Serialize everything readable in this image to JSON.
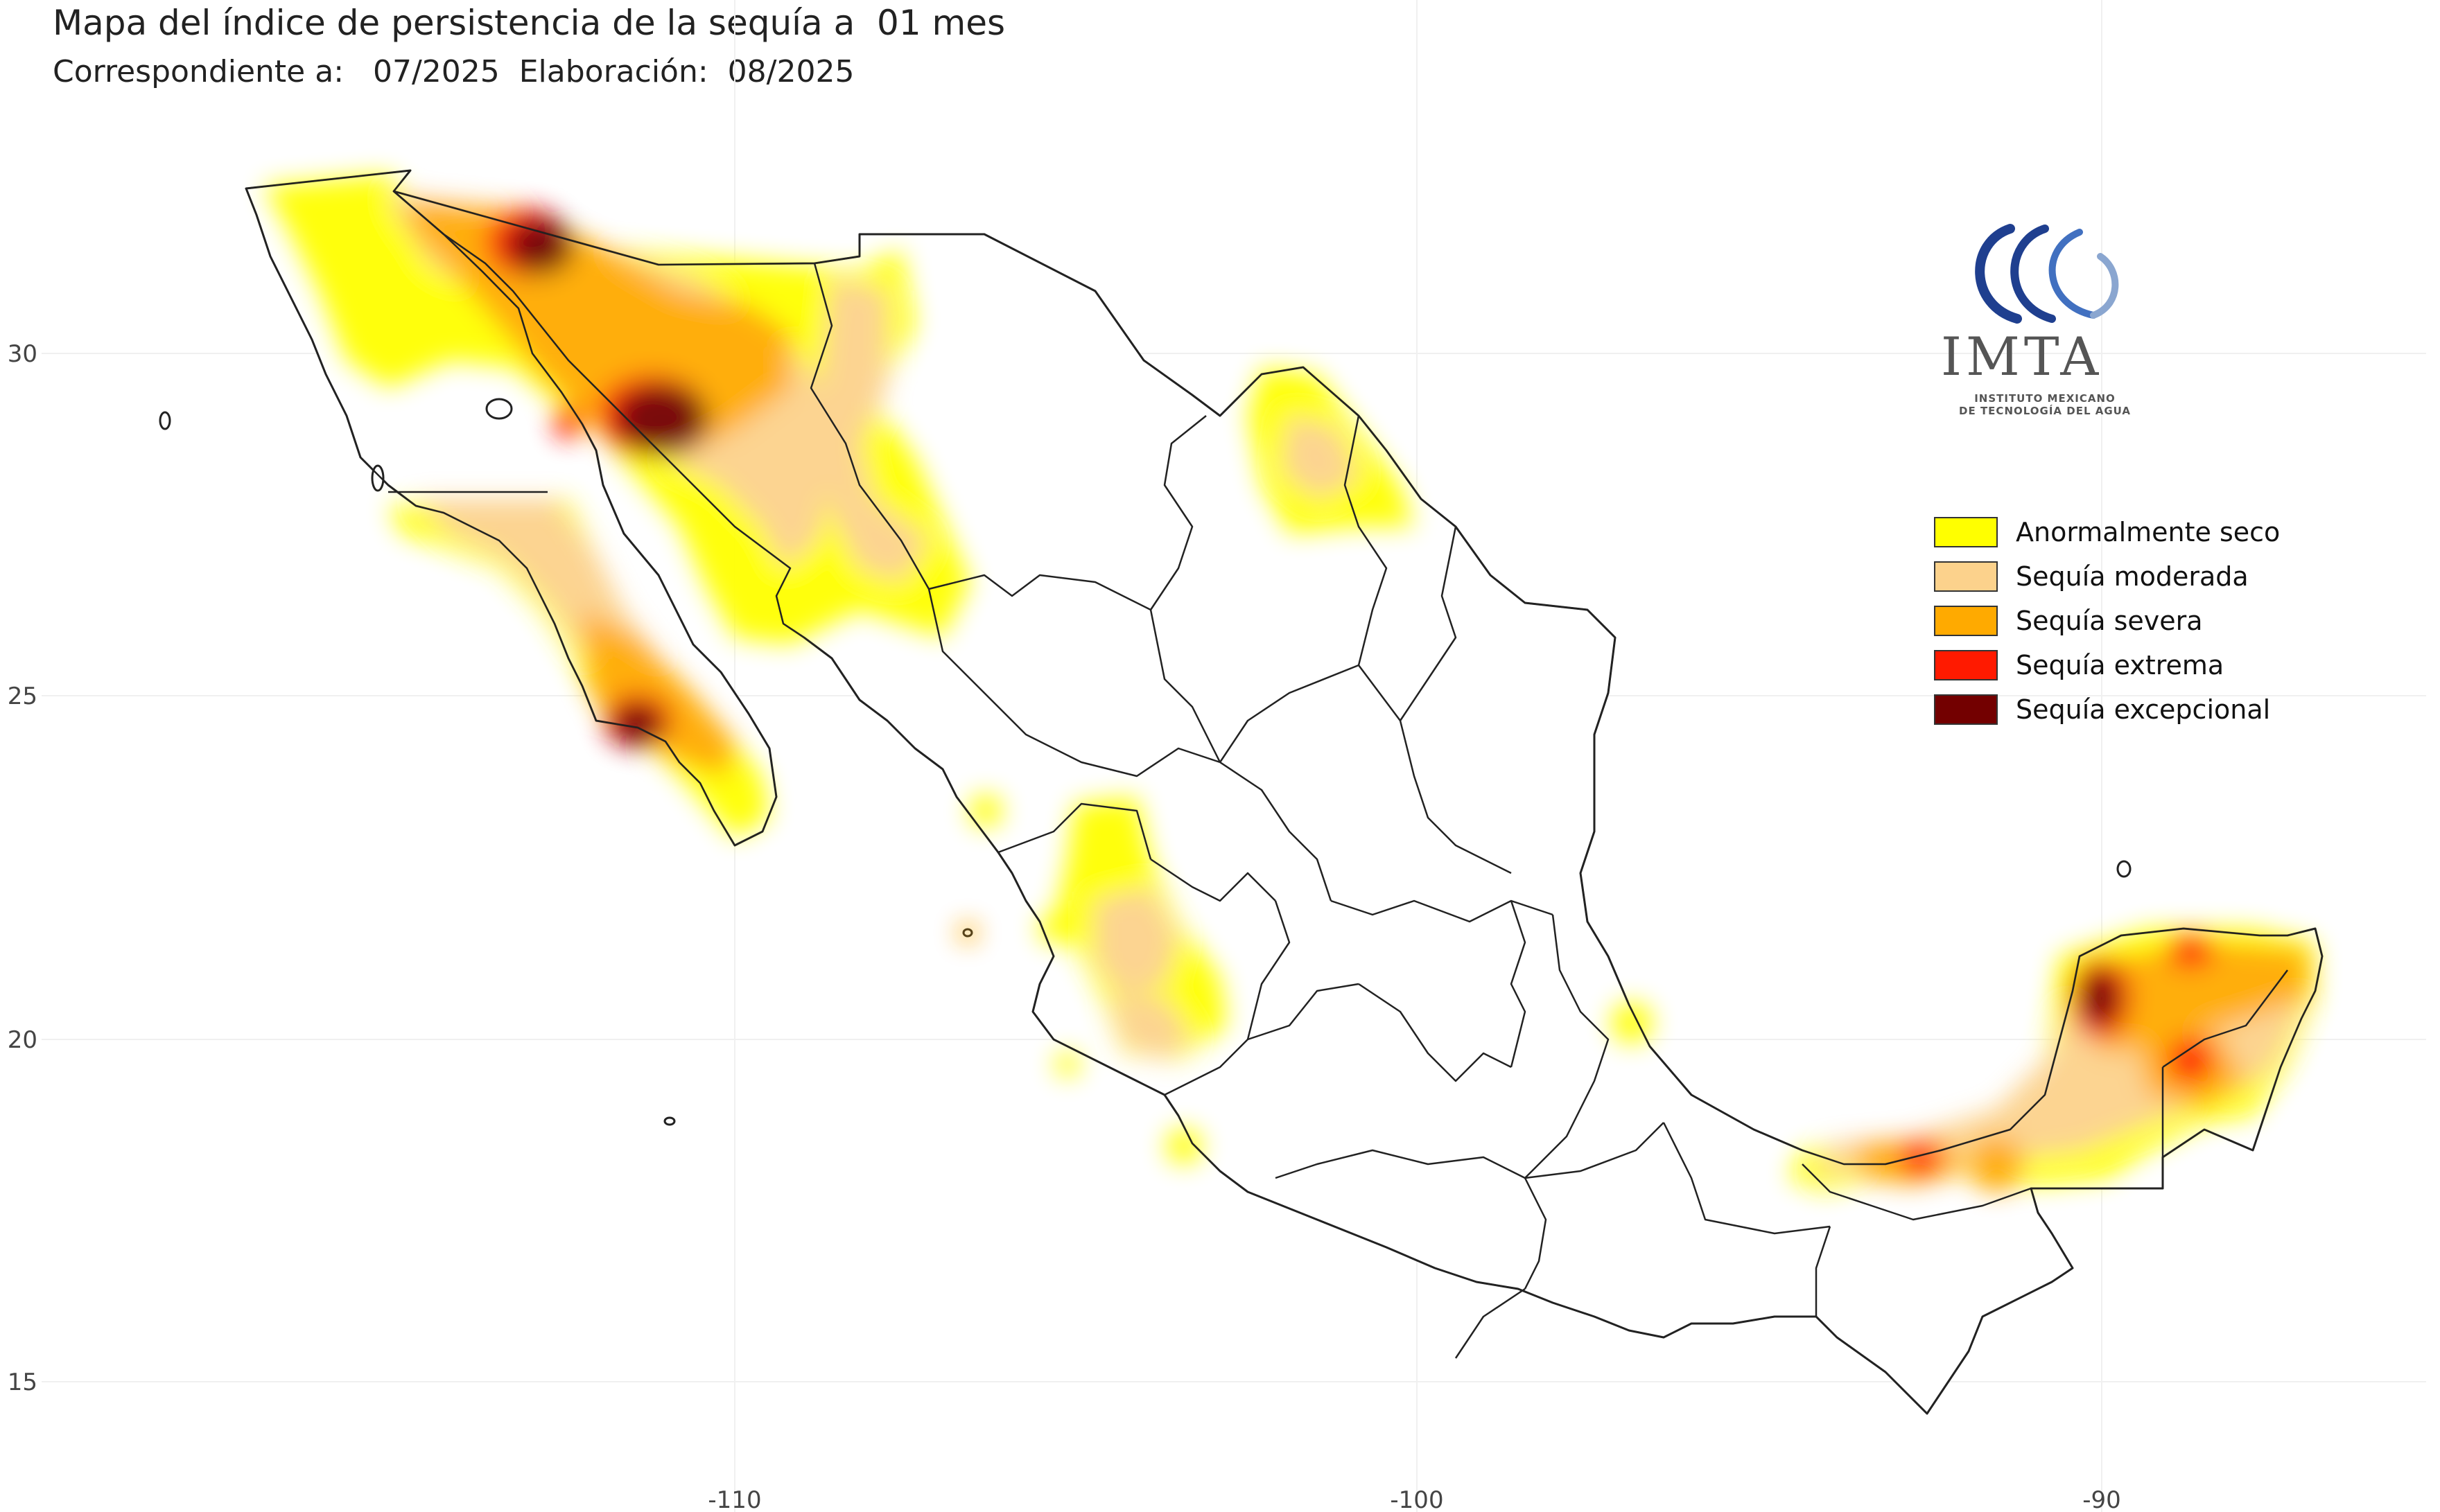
{
  "title": "Mapa del índice de persistencia de la sequía a  01 mes",
  "subtitle": "Correspondiente a:   07/2025  Elaboración:  08/2025",
  "logo": {
    "name": "IMTA",
    "line1": "INSTITUTO MEXICANO",
    "line2": "DE TECNOLOGÍA DEL AGUA"
  },
  "axes": {
    "x_ticks": [
      "-110",
      "-100",
      "-90"
    ],
    "y_ticks": [
      "30",
      "25",
      "20",
      "15"
    ]
  },
  "legend": [
    {
      "label": "Anormalmente seco",
      "color": "#ffff00"
    },
    {
      "label": "Sequía moderada",
      "color": "#fcd28c"
    },
    {
      "label": "Sequía severa",
      "color": "#ffaa00"
    },
    {
      "label": "Sequía extrema",
      "color": "#ff1a00"
    },
    {
      "label": "Sequía excepcional",
      "color": "#730000"
    }
  ]
}
